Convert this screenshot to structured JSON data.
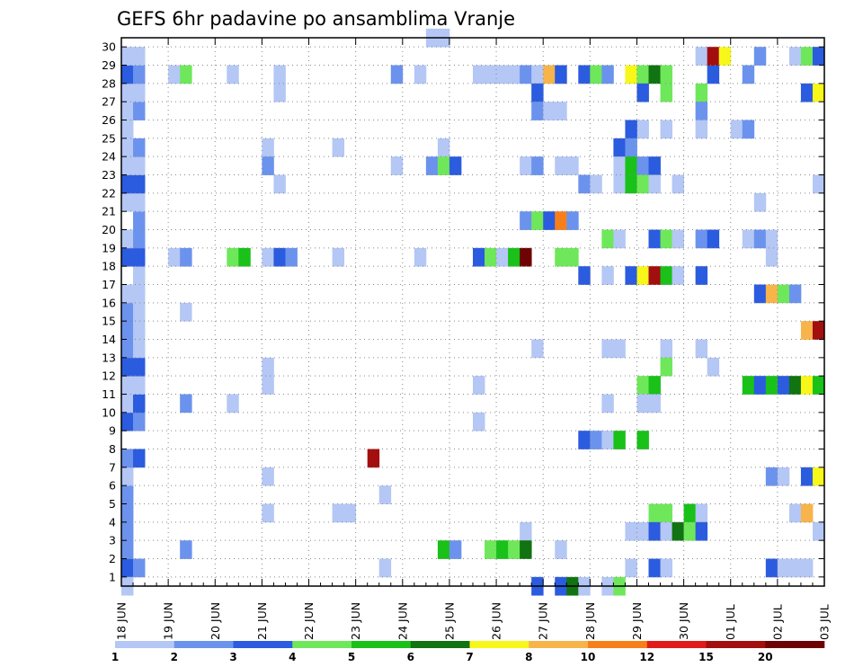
{
  "chart_data": {
    "type": "heatmap",
    "title": "GEFS 6hr padavine po ansamblima Vranje",
    "xlabel": "",
    "ylabel": "",
    "x_tick_labels": [
      "18 JUN",
      "19 JUN",
      "20 JUN",
      "21 JUN",
      "22 JUN",
      "23 JUN",
      "24 JUN",
      "25 JUN",
      "26 JUN",
      "27 JUN",
      "28 JUN",
      "29 JUN",
      "30 JUN",
      "01 JUL",
      "02 JUL",
      "03 JUL"
    ],
    "y_tick_labels": [
      "1",
      "2",
      "3",
      "4",
      "5",
      "6",
      "7",
      "8",
      "9",
      "10",
      "11",
      "12",
      "13",
      "14",
      "15",
      "16",
      "17",
      "18",
      "19",
      "20",
      "21",
      "22",
      "23",
      "24",
      "25",
      "26",
      "27",
      "28",
      "29",
      "30"
    ],
    "x_unit": "6-hour step from 18 JUN 00Z",
    "x_range": [
      0,
      60
    ],
    "y_range": [
      0,
      30
    ],
    "grid": true,
    "colorbar": {
      "labels": [
        "1",
        "2",
        "3",
        "4",
        "5",
        "6",
        "7",
        "8",
        "10",
        "12",
        "15",
        "20"
      ],
      "colors": [
        "#b4c7f5",
        "#6b93ee",
        "#2b5bde",
        "#6ee85a",
        "#19c119",
        "#117311",
        "#f7f71a",
        "#f7b44b",
        "#f77f1a",
        "#e11a1a",
        "#a30e0e",
        "#6e0303"
      ]
    },
    "cells": [
      [
        1,
        1,
        3
      ],
      [
        1,
        2,
        2
      ],
      [
        2,
        1,
        2
      ],
      [
        1,
        3,
        2
      ],
      [
        1,
        4,
        2
      ],
      [
        1,
        5,
        2
      ],
      [
        1,
        6,
        1
      ],
      [
        1,
        7,
        2
      ],
      [
        2,
        7,
        3
      ],
      [
        1,
        9,
        3
      ],
      [
        2,
        9,
        2
      ],
      [
        1,
        10,
        1
      ],
      [
        2,
        10,
        3
      ],
      [
        1,
        11,
        1
      ],
      [
        2,
        11,
        1
      ],
      [
        1,
        12,
        3
      ],
      [
        2,
        12,
        3
      ],
      [
        1,
        13,
        2
      ],
      [
        2,
        13,
        1
      ],
      [
        1,
        14,
        2
      ],
      [
        2,
        14,
        1
      ],
      [
        1,
        15,
        2
      ],
      [
        2,
        15,
        1
      ],
      [
        1,
        16,
        1
      ],
      [
        2,
        16,
        1
      ],
      [
        2,
        17,
        1
      ],
      [
        1,
        18,
        3
      ],
      [
        2,
        18,
        3
      ],
      [
        1,
        19,
        1
      ],
      [
        2,
        19,
        2
      ],
      [
        2,
        20,
        2
      ],
      [
        1,
        21,
        1
      ],
      [
        2,
        21,
        1
      ],
      [
        1,
        22,
        3
      ],
      [
        2,
        22,
        3
      ],
      [
        1,
        23,
        1
      ],
      [
        2,
        23,
        1
      ],
      [
        1,
        24,
        1
      ],
      [
        2,
        24,
        2
      ],
      [
        1,
        25,
        1
      ],
      [
        1,
        26,
        1
      ],
      [
        2,
        26,
        2
      ],
      [
        1,
        27,
        1
      ],
      [
        2,
        27,
        1
      ],
      [
        1,
        28,
        3
      ],
      [
        2,
        28,
        2
      ],
      [
        1,
        29,
        1
      ],
      [
        2,
        29,
        1
      ],
      [
        1,
        0,
        1
      ],
      [
        5,
        28,
        1
      ],
      [
        6,
        28,
        4
      ],
      [
        10,
        28,
        1
      ],
      [
        14,
        28,
        1
      ],
      [
        24,
        28,
        2
      ],
      [
        26,
        28,
        1
      ],
      [
        31,
        28,
        1
      ],
      [
        32,
        28,
        1
      ],
      [
        33,
        28,
        1
      ],
      [
        34,
        28,
        1
      ],
      [
        35,
        28,
        2
      ],
      [
        36,
        28,
        1
      ],
      [
        37,
        28,
        8
      ],
      [
        38,
        28,
        3
      ],
      [
        40,
        28,
        3
      ],
      [
        41,
        28,
        4
      ],
      [
        42,
        28,
        2
      ],
      [
        44,
        28,
        7
      ],
      [
        45,
        28,
        4
      ],
      [
        46,
        28,
        6
      ],
      [
        47,
        28,
        4
      ],
      [
        51,
        28,
        3
      ],
      [
        54,
        28,
        2
      ],
      [
        14,
        27,
        1
      ],
      [
        36,
        27,
        3
      ],
      [
        45,
        27,
        3
      ],
      [
        47,
        27,
        4
      ],
      [
        50,
        27,
        4
      ],
      [
        59,
        27,
        3
      ],
      [
        60,
        27,
        7
      ],
      [
        36,
        26,
        2
      ],
      [
        37,
        26,
        1
      ],
      [
        38,
        26,
        1
      ],
      [
        50,
        26,
        2
      ],
      [
        45,
        25,
        1
      ],
      [
        47,
        25,
        1
      ],
      [
        44,
        25,
        3
      ],
      [
        50,
        25,
        1
      ],
      [
        53,
        25,
        1
      ],
      [
        54,
        25,
        2
      ],
      [
        13,
        24,
        1
      ],
      [
        19,
        24,
        1
      ],
      [
        28,
        24,
        1
      ],
      [
        43,
        24,
        3
      ],
      [
        44,
        24,
        2
      ],
      [
        13,
        23,
        2
      ],
      [
        24,
        23,
        1
      ],
      [
        27,
        23,
        2
      ],
      [
        28,
        23,
        4
      ],
      [
        29,
        23,
        3
      ],
      [
        35,
        23,
        1
      ],
      [
        36,
        23,
        2
      ],
      [
        38,
        23,
        1
      ],
      [
        39,
        23,
        1
      ],
      [
        43,
        23,
        1
      ],
      [
        44,
        23,
        5
      ],
      [
        45,
        23,
        2
      ],
      [
        46,
        23,
        3
      ],
      [
        14,
        22,
        1
      ],
      [
        40,
        22,
        2
      ],
      [
        41,
        22,
        1
      ],
      [
        43,
        22,
        1
      ],
      [
        44,
        22,
        5
      ],
      [
        45,
        22,
        4
      ],
      [
        46,
        22,
        1
      ],
      [
        48,
        22,
        1
      ],
      [
        60,
        22,
        1
      ],
      [
        55,
        21,
        1
      ],
      [
        35,
        20,
        2
      ],
      [
        36,
        20,
        4
      ],
      [
        37,
        20,
        3
      ],
      [
        38,
        20,
        9
      ],
      [
        39,
        20,
        2
      ],
      [
        42,
        19,
        4
      ],
      [
        43,
        19,
        1
      ],
      [
        46,
        19,
        3
      ],
      [
        47,
        19,
        4
      ],
      [
        48,
        19,
        1
      ],
      [
        50,
        19,
        2
      ],
      [
        51,
        19,
        3
      ],
      [
        54,
        19,
        1
      ],
      [
        55,
        19,
        2
      ],
      [
        56,
        19,
        1
      ],
      [
        5,
        18,
        1
      ],
      [
        6,
        18,
        2
      ],
      [
        10,
        18,
        4
      ],
      [
        11,
        18,
        5
      ],
      [
        13,
        18,
        1
      ],
      [
        14,
        18,
        3
      ],
      [
        15,
        18,
        2
      ],
      [
        19,
        18,
        1
      ],
      [
        26,
        18,
        1
      ],
      [
        31,
        18,
        3
      ],
      [
        32,
        18,
        4
      ],
      [
        33,
        18,
        1
      ],
      [
        34,
        18,
        5
      ],
      [
        35,
        18,
        12
      ],
      [
        38,
        18,
        4
      ],
      [
        39,
        18,
        4
      ],
      [
        56,
        18,
        1
      ],
      [
        40,
        17,
        3
      ],
      [
        42,
        17,
        1
      ],
      [
        44,
        17,
        3
      ],
      [
        45,
        17,
        7
      ],
      [
        46,
        17,
        11
      ],
      [
        47,
        17,
        5
      ],
      [
        48,
        17,
        1
      ],
      [
        50,
        17,
        3
      ],
      [
        55,
        16,
        3
      ],
      [
        56,
        16,
        8
      ],
      [
        57,
        16,
        4
      ],
      [
        58,
        16,
        2
      ],
      [
        6,
        15,
        1
      ],
      [
        59,
        14,
        8
      ],
      [
        60,
        14,
        11
      ],
      [
        36,
        13,
        1
      ],
      [
        42,
        13,
        1
      ],
      [
        43,
        13,
        1
      ],
      [
        47,
        13,
        1
      ],
      [
        50,
        13,
        1
      ],
      [
        47,
        12,
        4
      ],
      [
        51,
        12,
        1
      ],
      [
        13,
        12,
        1
      ],
      [
        13,
        11,
        1
      ],
      [
        31,
        11,
        1
      ],
      [
        45,
        11,
        4
      ],
      [
        46,
        11,
        5
      ],
      [
        54,
        11,
        5
      ],
      [
        55,
        11,
        3
      ],
      [
        56,
        11,
        5
      ],
      [
        57,
        11,
        3
      ],
      [
        58,
        11,
        6
      ],
      [
        59,
        11,
        7
      ],
      [
        60,
        11,
        5
      ],
      [
        6,
        10,
        2
      ],
      [
        10,
        10,
        1
      ],
      [
        42,
        10,
        1
      ],
      [
        45,
        10,
        1
      ],
      [
        46,
        10,
        1
      ],
      [
        31,
        9,
        1
      ],
      [
        40,
        8,
        3
      ],
      [
        41,
        8,
        2
      ],
      [
        42,
        8,
        1
      ],
      [
        43,
        8,
        5
      ],
      [
        45,
        8,
        5
      ],
      [
        22,
        7,
        11
      ],
      [
        13,
        6,
        1
      ],
      [
        56,
        6,
        2
      ],
      [
        57,
        6,
        1
      ],
      [
        59,
        6,
        3
      ],
      [
        60,
        6,
        7
      ],
      [
        23,
        5,
        1
      ],
      [
        13,
        4,
        1
      ],
      [
        19,
        4,
        1
      ],
      [
        20,
        4,
        1
      ],
      [
        46,
        4,
        4
      ],
      [
        47,
        4,
        4
      ],
      [
        49,
        4,
        5
      ],
      [
        50,
        4,
        1
      ],
      [
        58,
        4,
        1
      ],
      [
        59,
        4,
        8
      ],
      [
        35,
        3,
        1
      ],
      [
        44,
        3,
        1
      ],
      [
        45,
        3,
        1
      ],
      [
        46,
        3,
        3
      ],
      [
        47,
        3,
        1
      ],
      [
        48,
        3,
        6
      ],
      [
        49,
        3,
        4
      ],
      [
        50,
        3,
        3
      ],
      [
        60,
        3,
        1
      ],
      [
        6,
        2,
        2
      ],
      [
        28,
        2,
        5
      ],
      [
        29,
        2,
        2
      ],
      [
        32,
        2,
        4
      ],
      [
        33,
        2,
        5
      ],
      [
        34,
        2,
        4
      ],
      [
        35,
        2,
        6
      ],
      [
        38,
        2,
        1
      ],
      [
        23,
        1,
        1
      ],
      [
        44,
        1,
        1
      ],
      [
        46,
        1,
        3
      ],
      [
        47,
        1,
        1
      ],
      [
        56,
        1,
        3
      ],
      [
        57,
        1,
        1
      ],
      [
        58,
        1,
        1
      ],
      [
        59,
        1,
        1
      ],
      [
        36,
        0,
        3
      ],
      [
        38,
        0,
        3
      ],
      [
        39,
        0,
        6
      ],
      [
        40,
        0,
        1
      ],
      [
        42,
        0,
        1
      ],
      [
        43,
        0,
        4
      ],
      [
        27,
        30,
        1
      ],
      [
        28,
        30,
        1
      ],
      [
        50,
        29,
        1
      ],
      [
        51,
        29,
        11
      ],
      [
        52,
        29,
        7
      ],
      [
        55,
        29,
        2
      ],
      [
        58,
        29,
        1
      ],
      [
        59,
        29,
        4
      ],
      [
        60,
        29,
        3
      ]
    ]
  }
}
